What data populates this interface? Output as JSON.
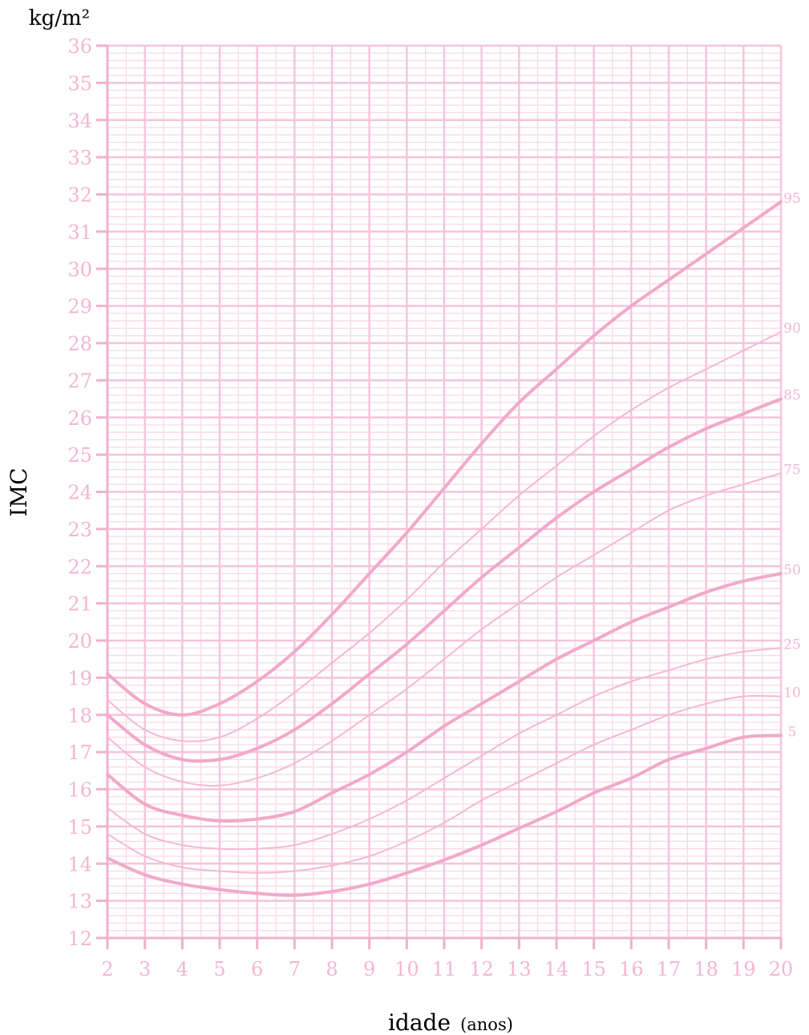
{
  "chart_data": {
    "type": "line",
    "title": "",
    "unit_label": "kg/m²",
    "ylabel": "IMC",
    "xlabel": "idade",
    "xlabel_unit": "(anos)",
    "xlim": [
      2,
      20
    ],
    "ylim": [
      12,
      36
    ],
    "x_ticks": [
      2,
      3,
      4,
      5,
      6,
      7,
      8,
      9,
      10,
      11,
      12,
      13,
      14,
      15,
      16,
      17,
      18,
      19,
      20
    ],
    "y_ticks": [
      12,
      13,
      14,
      15,
      16,
      17,
      18,
      19,
      20,
      21,
      22,
      23,
      24,
      25,
      26,
      27,
      28,
      29,
      30,
      31,
      32,
      33,
      34,
      35,
      36
    ],
    "grid": true,
    "x": [
      2,
      3,
      4,
      5,
      6,
      7,
      8,
      9,
      10,
      11,
      12,
      13,
      14,
      15,
      16,
      17,
      18,
      19,
      20
    ],
    "series": [
      {
        "name": "95",
        "bold": true,
        "values": [
          19.1,
          18.3,
          18.0,
          18.3,
          18.9,
          19.7,
          20.7,
          21.8,
          22.9,
          24.1,
          25.3,
          26.4,
          27.3,
          28.2,
          29.0,
          29.7,
          30.4,
          31.1,
          31.8
        ]
      },
      {
        "name": "90",
        "bold": false,
        "values": [
          18.4,
          17.6,
          17.3,
          17.4,
          17.9,
          18.6,
          19.4,
          20.2,
          21.1,
          22.1,
          23.0,
          23.9,
          24.7,
          25.5,
          26.2,
          26.8,
          27.3,
          27.8,
          28.3
        ]
      },
      {
        "name": "85",
        "bold": true,
        "values": [
          18.0,
          17.2,
          16.8,
          16.8,
          17.1,
          17.6,
          18.3,
          19.1,
          19.9,
          20.8,
          21.7,
          22.5,
          23.3,
          24.0,
          24.6,
          25.2,
          25.7,
          26.1,
          26.5
        ]
      },
      {
        "name": "75",
        "bold": false,
        "values": [
          17.4,
          16.6,
          16.2,
          16.1,
          16.3,
          16.7,
          17.3,
          18.0,
          18.7,
          19.5,
          20.3,
          21.0,
          21.7,
          22.3,
          22.9,
          23.5,
          23.9,
          24.2,
          24.5
        ]
      },
      {
        "name": "50",
        "bold": true,
        "values": [
          16.4,
          15.6,
          15.3,
          15.15,
          15.2,
          15.4,
          15.9,
          16.4,
          17.0,
          17.7,
          18.3,
          18.9,
          19.5,
          20.0,
          20.5,
          20.9,
          21.3,
          21.6,
          21.8
        ]
      },
      {
        "name": "25",
        "bold": false,
        "values": [
          15.5,
          14.8,
          14.5,
          14.4,
          14.4,
          14.5,
          14.8,
          15.2,
          15.7,
          16.3,
          16.9,
          17.5,
          18.0,
          18.5,
          18.9,
          19.2,
          19.5,
          19.7,
          19.8
        ]
      },
      {
        "name": "10",
        "bold": false,
        "values": [
          14.8,
          14.2,
          13.9,
          13.8,
          13.75,
          13.8,
          13.95,
          14.2,
          14.6,
          15.1,
          15.7,
          16.2,
          16.7,
          17.2,
          17.6,
          18.0,
          18.3,
          18.5,
          18.5
        ]
      },
      {
        "name": "5",
        "bold": true,
        "values": [
          14.15,
          13.7,
          13.45,
          13.3,
          13.2,
          13.15,
          13.25,
          13.45,
          13.75,
          14.1,
          14.5,
          14.95,
          15.4,
          15.9,
          16.3,
          16.8,
          17.1,
          17.4,
          17.45
        ]
      }
    ]
  },
  "colors": {
    "major_grid": "#f5c3db",
    "minor_grid": "#f9d9e8",
    "bold_curve": "#f0a9cb",
    "thin_curve": "#f3b8d4",
    "text": "#f3b6d3",
    "axis": "#f0b0cf"
  }
}
